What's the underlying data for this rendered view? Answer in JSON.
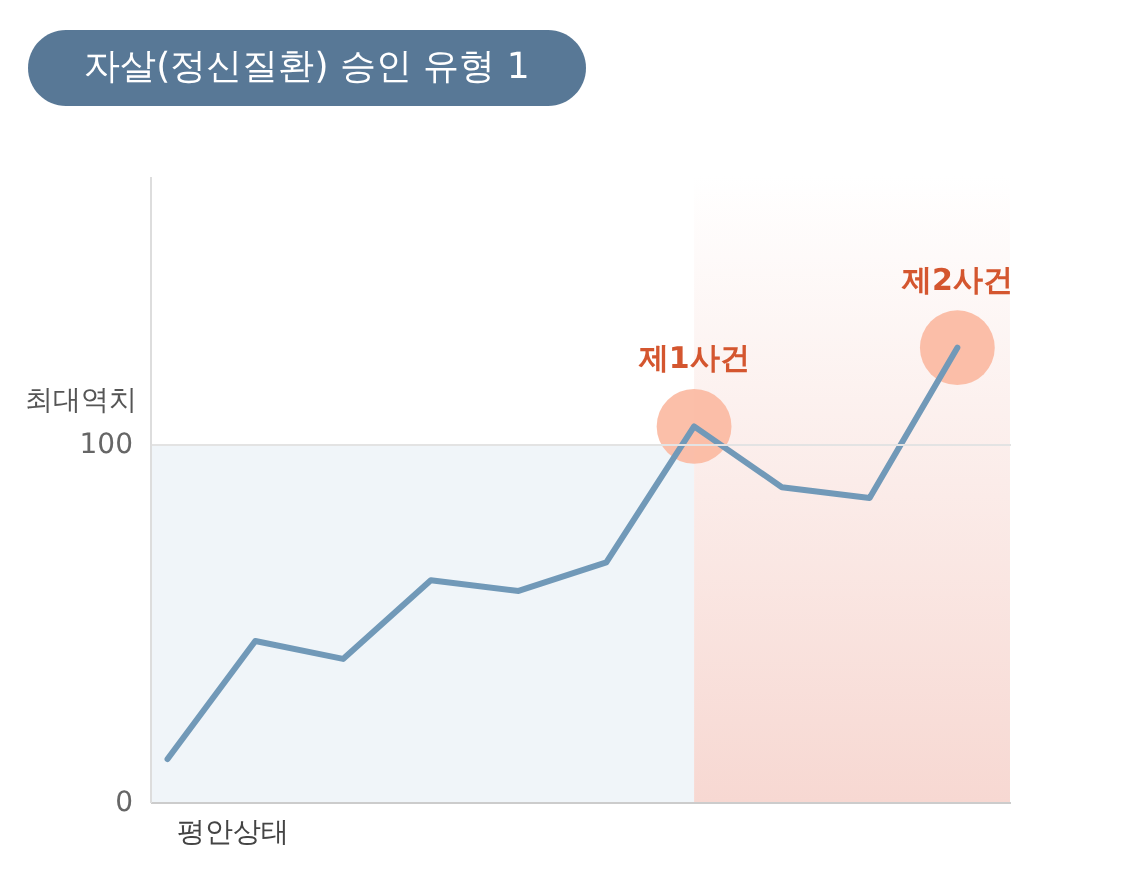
{
  "chart_data": {
    "type": "line",
    "title": "자살(정신질환) 승인 유형 1",
    "xlabel": "평안상태",
    "ylabel": "최대역치",
    "categories": [
      null,
      null,
      null,
      null,
      null,
      null,
      null,
      null,
      null,
      null
    ],
    "series": [
      {
        "type": "scatter",
        "color": "#fbb8a0",
        "marker": "circle",
        "values": [
          null,
          null,
          null,
          null,
          null,
          null,
          105,
          null,
          null,
          127
        ]
      },
      {
        "color": "#7199b8",
        "line_style": "solid",
        "values": [
          12,
          45,
          40,
          62,
          59,
          67,
          105,
          88,
          85,
          127
        ]
      }
    ],
    "ylim": [
      0,
      175
    ],
    "yticks": [
      0,
      100
    ],
    "grid": "y",
    "bands": [
      {
        "axis": "y",
        "from": 0,
        "to": 100,
        "color": "#f0f5f9"
      }
    ],
    "annotations": [
      {
        "text": "제1사건",
        "y": 105
      },
      {
        "text": "제2사건",
        "y": 127
      }
    ]
  }
}
